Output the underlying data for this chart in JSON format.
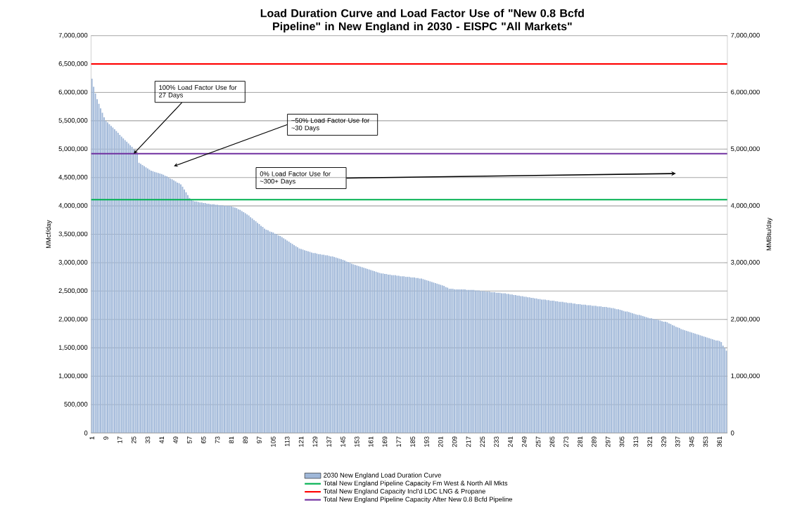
{
  "chart_data": {
    "type": "bar",
    "title": "Load Duration Curve and Load Factor Use of \"New 0.8 Bcfd Pipeline\" in New England in 2030 - EISPC \"All Markets\"",
    "ylabel": "MMcf/day",
    "y2label": "MMBtu/day",
    "categories": [
      "1",
      null,
      null,
      null,
      null,
      null,
      null,
      null,
      "9",
      null,
      null,
      null,
      null,
      null,
      null,
      null,
      "17",
      null,
      null,
      null,
      null,
      null,
      null,
      null,
      "25",
      null,
      null,
      null,
      null,
      null,
      null,
      null,
      "33",
      null,
      null,
      null,
      null,
      null,
      null,
      null,
      "41",
      null,
      null,
      null,
      null,
      null,
      null,
      null,
      "49",
      null,
      null,
      null,
      null,
      null,
      null,
      null,
      "57",
      null,
      null,
      null,
      null,
      null,
      null,
      null,
      "65",
      null,
      null,
      null,
      null,
      null,
      null,
      null,
      "73",
      null,
      null,
      null,
      null,
      null,
      null,
      null,
      "81",
      null,
      null,
      null,
      null,
      null,
      null,
      null,
      "89",
      null,
      null,
      null,
      null,
      null,
      null,
      null,
      "97",
      null,
      null,
      null,
      null,
      null,
      null,
      null,
      "105",
      null,
      null,
      null,
      null,
      null,
      null,
      null,
      "113",
      null,
      null,
      null,
      null,
      null,
      null,
      null,
      "121",
      null,
      null,
      null,
      null,
      null,
      null,
      null,
      "129",
      null,
      null,
      null,
      null,
      null,
      null,
      null,
      "137",
      null,
      null,
      null,
      null,
      null,
      null,
      null,
      "145",
      null,
      null,
      null,
      null,
      null,
      null,
      null,
      "153",
      null,
      null,
      null,
      null,
      null,
      null,
      null,
      "161",
      null,
      null,
      null,
      null,
      null,
      null,
      null,
      "169",
      null,
      null,
      null,
      null,
      null,
      null,
      null,
      "177",
      null,
      null,
      null,
      null,
      null,
      null,
      null,
      "185",
      null,
      null,
      null,
      null,
      null,
      null,
      null,
      "193",
      null,
      null,
      null,
      null,
      null,
      null,
      null,
      "201",
      null,
      null,
      null,
      null,
      null,
      null,
      null,
      "209",
      null,
      null,
      null,
      null,
      null,
      null,
      null,
      "217",
      null,
      null,
      null,
      null,
      null,
      null,
      null,
      "225",
      null,
      null,
      null,
      null,
      null,
      null,
      null,
      "233",
      null,
      null,
      null,
      null,
      null,
      null,
      null,
      "241",
      null,
      null,
      null,
      null,
      null,
      null,
      null,
      "249",
      null,
      null,
      null,
      null,
      null,
      null,
      null,
      "257",
      null,
      null,
      null,
      null,
      null,
      null,
      null,
      "265",
      null,
      null,
      null,
      null,
      null,
      null,
      null,
      "273",
      null,
      null,
      null,
      null,
      null,
      null,
      null,
      "281",
      null,
      null,
      null,
      null,
      null,
      null,
      null,
      "289",
      null,
      null,
      null,
      null,
      null,
      null,
      null,
      "297",
      null,
      null,
      null,
      null,
      null,
      null,
      null,
      "305",
      null,
      null,
      null,
      null,
      null,
      null,
      null,
      "313",
      null,
      null,
      null,
      null,
      null,
      null,
      null,
      "321",
      null,
      null,
      null,
      null,
      null,
      null,
      null,
      "329",
      null,
      null,
      null,
      null,
      null,
      null,
      null,
      "337",
      null,
      null,
      null,
      null,
      null,
      null,
      null,
      "345",
      null,
      null,
      null,
      null,
      null,
      null,
      null,
      "353",
      null,
      null,
      null,
      null,
      null,
      null,
      null,
      "361",
      null,
      null,
      null,
      null
    ],
    "series": [
      {
        "name": "2030 New England Load Duration Curve",
        "color": "#9fb7d8",
        "values": [
          6240000,
          6100000,
          5980000,
          5880000,
          5800000,
          5720000,
          5640000,
          5560000,
          5500000,
          5470000,
          5440000,
          5410000,
          5380000,
          5350000,
          5320000,
          5290000,
          5250000,
          5220000,
          5190000,
          5160000,
          5130000,
          5100000,
          5070000,
          5040000,
          5000000,
          4960000,
          4920000,
          4760000,
          4740000,
          4720000,
          4700000,
          4680000,
          4660000,
          4640000,
          4620000,
          4610000,
          4600000,
          4590000,
          4580000,
          4570000,
          4560000,
          4550000,
          4530000,
          4520000,
          4500000,
          4480000,
          4470000,
          4450000,
          4430000,
          4410000,
          4400000,
          4380000,
          4340000,
          4290000,
          4240000,
          4190000,
          4140000,
          4100000,
          4090000,
          4080000,
          4080000,
          4070000,
          4060000,
          4060000,
          4050000,
          4050000,
          4040000,
          4040000,
          4030000,
          4030000,
          4030000,
          4020000,
          4020000,
          4010000,
          4010000,
          4010000,
          4000000,
          4000000,
          4000000,
          4000000,
          3990000,
          3980000,
          3970000,
          3960000,
          3940000,
          3930000,
          3910000,
          3890000,
          3870000,
          3850000,
          3830000,
          3800000,
          3780000,
          3750000,
          3730000,
          3700000,
          3680000,
          3650000,
          3630000,
          3600000,
          3580000,
          3570000,
          3550000,
          3540000,
          3530000,
          3510000,
          3500000,
          3480000,
          3470000,
          3450000,
          3430000,
          3410000,
          3390000,
          3370000,
          3350000,
          3330000,
          3310000,
          3290000,
          3270000,
          3250000,
          3240000,
          3230000,
          3220000,
          3210000,
          3200000,
          3190000,
          3180000,
          3170000,
          3170000,
          3160000,
          3150000,
          3150000,
          3140000,
          3140000,
          3130000,
          3130000,
          3120000,
          3110000,
          3110000,
          3100000,
          3090000,
          3080000,
          3070000,
          3060000,
          3050000,
          3040000,
          3020000,
          3010000,
          3000000,
          2980000,
          2970000,
          2960000,
          2950000,
          2940000,
          2930000,
          2920000,
          2910000,
          2900000,
          2890000,
          2880000,
          2870000,
          2860000,
          2850000,
          2840000,
          2830000,
          2820000,
          2810000,
          2810000,
          2800000,
          2800000,
          2790000,
          2790000,
          2780000,
          2780000,
          2780000,
          2770000,
          2770000,
          2760000,
          2760000,
          2760000,
          2750000,
          2750000,
          2750000,
          2740000,
          2740000,
          2740000,
          2730000,
          2730000,
          2720000,
          2720000,
          2710000,
          2700000,
          2690000,
          2680000,
          2670000,
          2660000,
          2650000,
          2640000,
          2630000,
          2620000,
          2610000,
          2600000,
          2590000,
          2570000,
          2560000,
          2540000,
          2540000,
          2540000,
          2530000,
          2530000,
          2530000,
          2530000,
          2530000,
          2530000,
          2530000,
          2520000,
          2520000,
          2520000,
          2520000,
          2520000,
          2510000,
          2510000,
          2510000,
          2500000,
          2500000,
          2500000,
          2490000,
          2490000,
          2490000,
          2480000,
          2480000,
          2480000,
          2470000,
          2470000,
          2470000,
          2460000,
          2460000,
          2460000,
          2450000,
          2450000,
          2440000,
          2440000,
          2430000,
          2430000,
          2420000,
          2420000,
          2410000,
          2410000,
          2400000,
          2400000,
          2390000,
          2390000,
          2380000,
          2380000,
          2370000,
          2370000,
          2360000,
          2360000,
          2350000,
          2350000,
          2350000,
          2340000,
          2340000,
          2330000,
          2330000,
          2330000,
          2320000,
          2320000,
          2310000,
          2310000,
          2310000,
          2300000,
          2300000,
          2290000,
          2290000,
          2290000,
          2280000,
          2280000,
          2270000,
          2270000,
          2270000,
          2260000,
          2260000,
          2260000,
          2250000,
          2250000,
          2250000,
          2240000,
          2240000,
          2240000,
          2230000,
          2230000,
          2230000,
          2220000,
          2220000,
          2220000,
          2210000,
          2210000,
          2200000,
          2200000,
          2190000,
          2180000,
          2180000,
          2170000,
          2160000,
          2150000,
          2140000,
          2140000,
          2130000,
          2120000,
          2110000,
          2100000,
          2090000,
          2080000,
          2080000,
          2070000,
          2060000,
          2050000,
          2040000,
          2030000,
          2020000,
          2020000,
          2010000,
          2000000,
          2000000,
          1990000,
          1980000,
          1970000,
          1960000,
          1960000,
          1950000,
          1930000,
          1920000,
          1900000,
          1890000,
          1870000,
          1860000,
          1850000,
          1830000,
          1820000,
          1810000,
          1800000,
          1790000,
          1780000,
          1770000,
          1760000,
          1750000,
          1740000,
          1730000,
          1720000,
          1710000,
          1700000,
          1690000,
          1680000,
          1670000,
          1660000,
          1650000,
          1640000,
          1630000,
          1630000,
          1620000,
          1600000,
          1540000,
          1500000,
          1450000
        ]
      }
    ],
    "ylim": [
      0,
      7000000
    ],
    "yticks": [
      0,
      {
        "value": 500000,
        "label": "500,000"
      },
      {
        "value": 1000000,
        "label": "1,000,000"
      },
      {
        "value": 1500000,
        "label": "1,500,000"
      },
      {
        "value": 2000000,
        "label": "2,000,000"
      },
      {
        "value": 2500000,
        "label": "2,500,000"
      },
      {
        "value": 3000000,
        "label": "3,000,000"
      },
      {
        "value": 3500000,
        "label": "3,500,000"
      },
      {
        "value": 4000000,
        "label": "4,000,000"
      },
      {
        "value": 4500000,
        "label": "4,500,000"
      },
      {
        "value": 5000000,
        "label": "5,000,000"
      },
      {
        "value": 5500000,
        "label": "5,500,000"
      },
      {
        "value": 6000000,
        "label": "6,000,000"
      },
      {
        "value": 6500000,
        "label": "6,500,000"
      },
      {
        "value": 7000000,
        "label": "7,000,000"
      }
    ],
    "y2lim": [
      0,
      7000000
    ],
    "y2ticks": [
      0,
      {
        "value": 1000000,
        "label": "1,000,000"
      },
      {
        "value": 2000000,
        "label": "2,000,000"
      },
      {
        "value": 3000000,
        "label": "3,000,000"
      },
      {
        "value": 4000000,
        "label": "4,000,000"
      },
      {
        "value": 5000000,
        "label": "5,000,000"
      },
      {
        "value": 6000000,
        "label": "6,000,000"
      },
      {
        "value": 7000000,
        "label": "7,000,000"
      }
    ],
    "ref_lines": [
      {
        "axis": "y",
        "value": 4110000,
        "label": "Total New England Pipeline Capacity Fm West & North All Mkts",
        "color": "#00b050"
      },
      {
        "axis": "y",
        "value": 6500000,
        "label": "Total New England  Capacity Incl'd LDC LNG & Propane",
        "color": "#ff0000"
      },
      {
        "axis": "y",
        "value": 4920000,
        "label": "Total New England Pipeline Capacity  After New 0.8 Bcfd Pipeline",
        "color": "#7030a0"
      }
    ],
    "annotations": [
      {
        "text": "100% Load Factor Use for 27 Days",
        "x": "25",
        "y": 4920000
      },
      "~50% Load Factor Use for ~30 Days",
      "0% Load Factor Use for ~300+ Days"
    ],
    "grid": "y",
    "legend": "bottom"
  }
}
